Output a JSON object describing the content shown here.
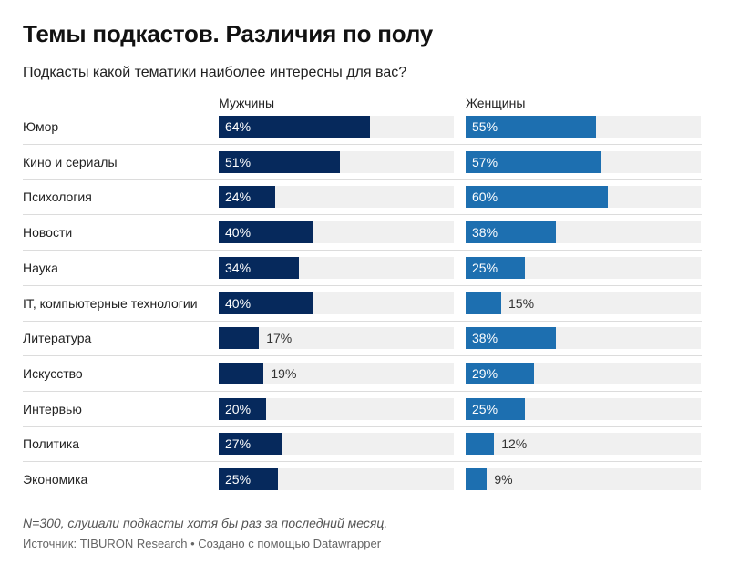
{
  "title": "Темы подкастов. Различия по полу",
  "subtitle": "Подкасты какой тематики наиболее интересны для вас?",
  "note": "N=300, слушали подкасты хотя бы раз за последний месяц.",
  "source": "Источник: TIBURON Research • Создано с помощью Datawrapper",
  "chart_data": {
    "type": "bar",
    "orientation": "horizontal",
    "unit": "%",
    "xlim": [
      0,
      100
    ],
    "grid": false,
    "categories": [
      "Юмор",
      "Кино и сериалы",
      "Психология",
      "Новости",
      "Наука",
      "IT, компьютерные технологии",
      "Литература",
      "Искусство",
      "Интервью",
      "Политика",
      "Экономика"
    ],
    "series": [
      {
        "name": "Мужчины",
        "color": "#06295c",
        "values": [
          64,
          51,
          24,
          40,
          34,
          40,
          17,
          19,
          20,
          27,
          25
        ]
      },
      {
        "name": "Женщины",
        "color": "#1d6fb0",
        "values": [
          55,
          57,
          60,
          38,
          25,
          15,
          38,
          29,
          25,
          12,
          9
        ]
      }
    ]
  }
}
